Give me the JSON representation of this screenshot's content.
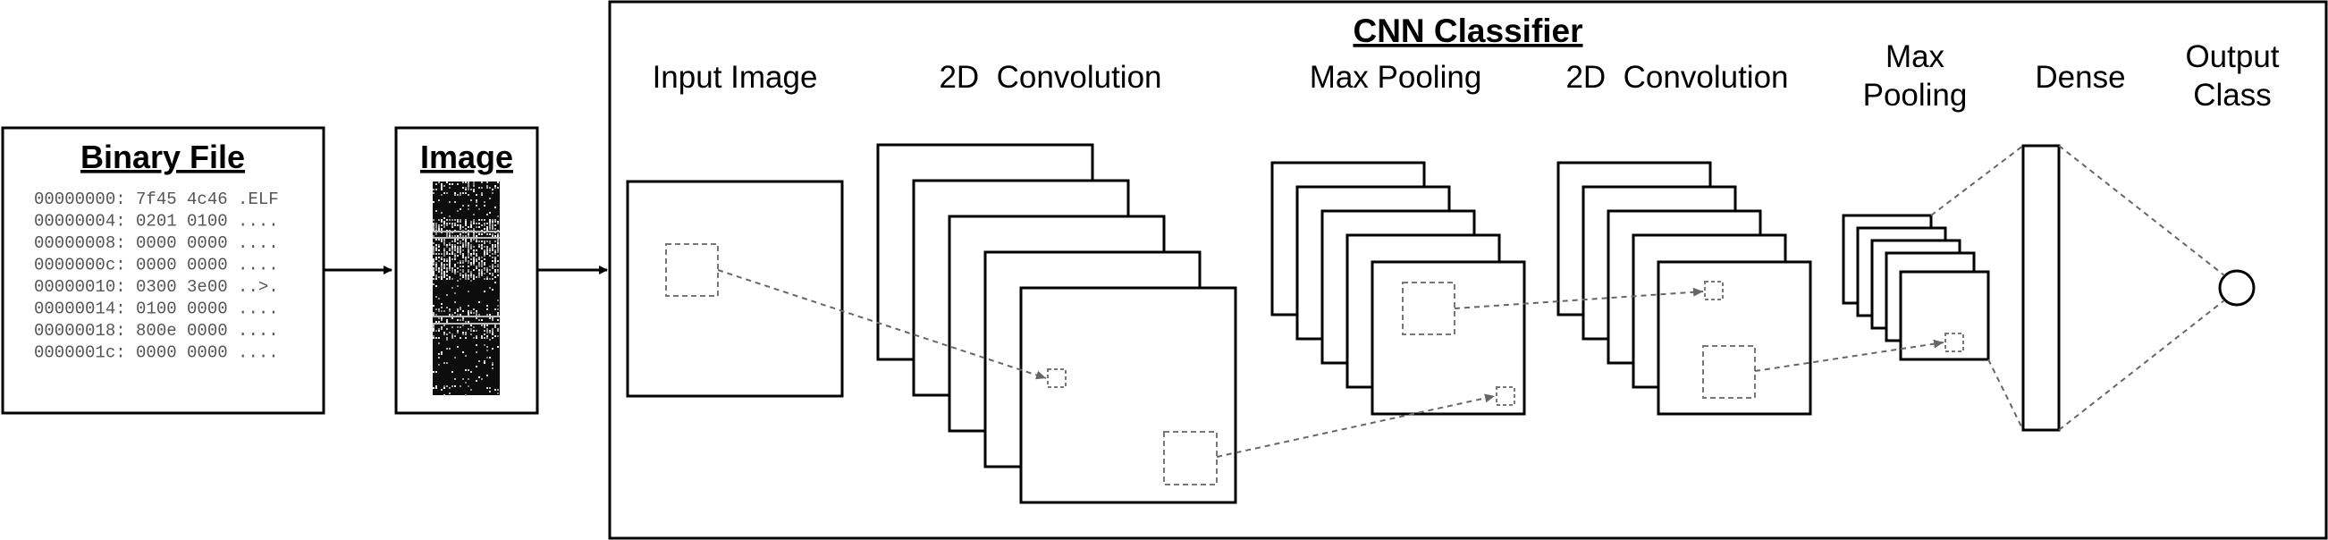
{
  "binary_file": {
    "title": "Binary File",
    "lines": [
      "00000000: 7f45 4c46 .ELF",
      "00000004: 0201 0100 ....",
      "00000008: 0000 0000 ....",
      "0000000c: 0000 0000 ....",
      "00000010: 0300 3e00 ..>.",
      "00000014: 0100 0000 ....",
      "00000018: 800e 0000 ....",
      "0000001c: 0000 0000 ...."
    ]
  },
  "image_panel": {
    "title": "Image"
  },
  "classifier": {
    "title": "CNN Classifier",
    "stages": {
      "input_image": "Input Image",
      "conv1": "2D  Convolution",
      "pool1": "Max Pooling",
      "conv2": "2D  Convolution",
      "pool2_line1": "Max",
      "pool2_line2": "Pooling",
      "dense": "Dense",
      "output_line1": "Output",
      "output_line2": "Class"
    }
  },
  "colors": {
    "stroke": "#000000",
    "dashed": "#666666",
    "background": "#ffffff"
  }
}
